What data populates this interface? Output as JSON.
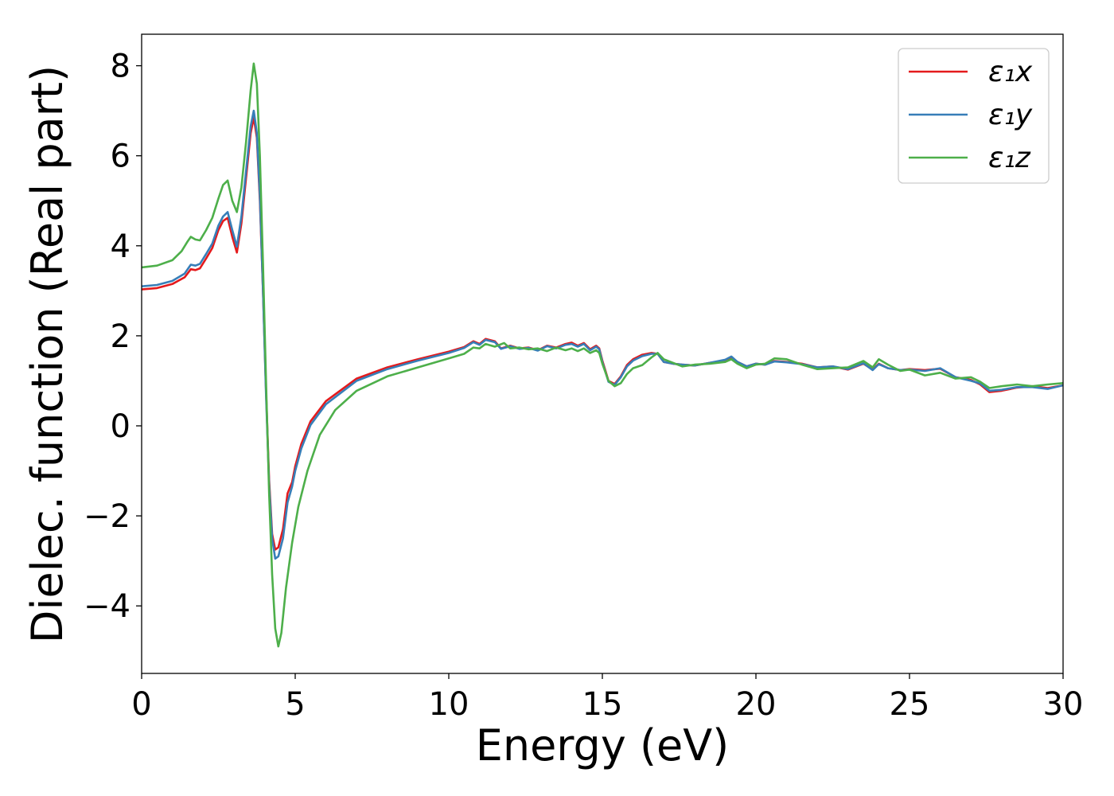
{
  "chart_data": {
    "type": "line",
    "xlabel": "Energy (eV)",
    "ylabel": "Dielec. function (Real part)",
    "xlim": [
      0,
      30
    ],
    "ylim": [
      -5.5,
      8.7
    ],
    "xticks": [
      0,
      5,
      10,
      15,
      20,
      25,
      30
    ],
    "xtick_labels": [
      "0",
      "5",
      "10",
      "15",
      "20",
      "25",
      "30"
    ],
    "yticks": [
      -4,
      -2,
      0,
      2,
      4,
      6,
      8
    ],
    "ytick_labels": [
      "−4",
      "−2",
      "0",
      "2",
      "4",
      "6",
      "8"
    ],
    "grid": false,
    "legend_position": "top-right",
    "series": [
      {
        "name": "ε₁x",
        "color": "#e41a1c",
        "points": [
          [
            0,
            3.03
          ],
          [
            0.5,
            3.06
          ],
          [
            1.0,
            3.15
          ],
          [
            1.4,
            3.3
          ],
          [
            1.6,
            3.48
          ],
          [
            1.75,
            3.46
          ],
          [
            1.9,
            3.5
          ],
          [
            2.1,
            3.72
          ],
          [
            2.3,
            3.95
          ],
          [
            2.5,
            4.35
          ],
          [
            2.65,
            4.55
          ],
          [
            2.8,
            4.62
          ],
          [
            2.95,
            4.2
          ],
          [
            3.1,
            3.85
          ],
          [
            3.25,
            4.5
          ],
          [
            3.4,
            5.5
          ],
          [
            3.55,
            6.5
          ],
          [
            3.65,
            6.85
          ],
          [
            3.75,
            6.4
          ],
          [
            3.85,
            5.0
          ],
          [
            3.95,
            3.0
          ],
          [
            4.05,
            0.8
          ],
          [
            4.15,
            -1.2
          ],
          [
            4.25,
            -2.4
          ],
          [
            4.35,
            -2.75
          ],
          [
            4.45,
            -2.7
          ],
          [
            4.6,
            -2.3
          ],
          [
            4.75,
            -1.5
          ],
          [
            4.9,
            -1.25
          ],
          [
            5.0,
            -0.9
          ],
          [
            5.2,
            -0.4
          ],
          [
            5.5,
            0.1
          ],
          [
            6.0,
            0.55
          ],
          [
            7.0,
            1.05
          ],
          [
            8.0,
            1.3
          ],
          [
            9.0,
            1.48
          ],
          [
            10.0,
            1.65
          ],
          [
            10.5,
            1.75
          ],
          [
            10.8,
            1.88
          ],
          [
            11.0,
            1.82
          ],
          [
            11.2,
            1.93
          ],
          [
            11.5,
            1.88
          ],
          [
            11.7,
            1.72
          ],
          [
            12.0,
            1.78
          ],
          [
            12.3,
            1.72
          ],
          [
            12.6,
            1.74
          ],
          [
            12.9,
            1.68
          ],
          [
            13.2,
            1.78
          ],
          [
            13.5,
            1.74
          ],
          [
            13.8,
            1.82
          ],
          [
            14.0,
            1.85
          ],
          [
            14.2,
            1.78
          ],
          [
            14.4,
            1.84
          ],
          [
            14.6,
            1.7
          ],
          [
            14.8,
            1.78
          ],
          [
            14.9,
            1.72
          ],
          [
            15.0,
            1.45
          ],
          [
            15.2,
            1.0
          ],
          [
            15.4,
            0.93
          ],
          [
            15.6,
            1.1
          ],
          [
            15.8,
            1.35
          ],
          [
            16.0,
            1.48
          ],
          [
            16.3,
            1.58
          ],
          [
            16.6,
            1.62
          ],
          [
            16.8,
            1.6
          ],
          [
            17.0,
            1.42
          ],
          [
            17.3,
            1.38
          ],
          [
            17.6,
            1.36
          ],
          [
            18.0,
            1.34
          ],
          [
            18.5,
            1.4
          ],
          [
            19.0,
            1.45
          ],
          [
            19.2,
            1.52
          ],
          [
            19.4,
            1.42
          ],
          [
            19.7,
            1.32
          ],
          [
            20.0,
            1.38
          ],
          [
            20.3,
            1.36
          ],
          [
            20.6,
            1.44
          ],
          [
            21.0,
            1.42
          ],
          [
            21.5,
            1.38
          ],
          [
            22.0,
            1.3
          ],
          [
            22.5,
            1.32
          ],
          [
            23.0,
            1.25
          ],
          [
            23.5,
            1.38
          ],
          [
            23.8,
            1.25
          ],
          [
            24.0,
            1.38
          ],
          [
            24.3,
            1.28
          ],
          [
            24.7,
            1.24
          ],
          [
            25.0,
            1.26
          ],
          [
            25.5,
            1.24
          ],
          [
            26.0,
            1.27
          ],
          [
            26.5,
            1.08
          ],
          [
            27.0,
            1.02
          ],
          [
            27.3,
            0.92
          ],
          [
            27.6,
            0.75
          ],
          [
            28.0,
            0.78
          ],
          [
            28.5,
            0.85
          ],
          [
            29.0,
            0.88
          ],
          [
            29.5,
            0.84
          ],
          [
            30.0,
            0.9
          ]
        ]
      },
      {
        "name": "ε₁y",
        "color": "#377eb8",
        "points": [
          [
            0,
            3.1
          ],
          [
            0.5,
            3.13
          ],
          [
            1.0,
            3.22
          ],
          [
            1.4,
            3.38
          ],
          [
            1.6,
            3.58
          ],
          [
            1.75,
            3.56
          ],
          [
            1.9,
            3.6
          ],
          [
            2.1,
            3.82
          ],
          [
            2.3,
            4.05
          ],
          [
            2.5,
            4.45
          ],
          [
            2.65,
            4.65
          ],
          [
            2.8,
            4.75
          ],
          [
            2.95,
            4.35
          ],
          [
            3.1,
            3.98
          ],
          [
            3.25,
            4.65
          ],
          [
            3.4,
            5.65
          ],
          [
            3.55,
            6.65
          ],
          [
            3.65,
            7.0
          ],
          [
            3.75,
            6.5
          ],
          [
            3.85,
            5.1
          ],
          [
            3.95,
            3.0
          ],
          [
            4.05,
            0.7
          ],
          [
            4.15,
            -1.3
          ],
          [
            4.25,
            -2.5
          ],
          [
            4.35,
            -2.95
          ],
          [
            4.45,
            -2.9
          ],
          [
            4.6,
            -2.5
          ],
          [
            4.75,
            -1.7
          ],
          [
            4.9,
            -1.35
          ],
          [
            5.0,
            -1.0
          ],
          [
            5.2,
            -0.5
          ],
          [
            5.5,
            0.02
          ],
          [
            6.0,
            0.48
          ],
          [
            7.0,
            1.0
          ],
          [
            8.0,
            1.26
          ],
          [
            9.0,
            1.45
          ],
          [
            10.0,
            1.62
          ],
          [
            10.5,
            1.73
          ],
          [
            10.8,
            1.86
          ],
          [
            11.0,
            1.8
          ],
          [
            11.2,
            1.91
          ],
          [
            11.5,
            1.86
          ],
          [
            11.7,
            1.71
          ],
          [
            12.0,
            1.77
          ],
          [
            12.3,
            1.71
          ],
          [
            12.6,
            1.73
          ],
          [
            12.9,
            1.67
          ],
          [
            13.2,
            1.77
          ],
          [
            13.5,
            1.72
          ],
          [
            13.8,
            1.8
          ],
          [
            14.0,
            1.82
          ],
          [
            14.2,
            1.76
          ],
          [
            14.4,
            1.82
          ],
          [
            14.6,
            1.68
          ],
          [
            14.8,
            1.76
          ],
          [
            14.9,
            1.7
          ],
          [
            15.0,
            1.42
          ],
          [
            15.2,
            0.98
          ],
          [
            15.4,
            0.91
          ],
          [
            15.6,
            1.08
          ],
          [
            15.8,
            1.32
          ],
          [
            16.0,
            1.45
          ],
          [
            16.3,
            1.55
          ],
          [
            16.6,
            1.6
          ],
          [
            16.8,
            1.6
          ],
          [
            17.0,
            1.42
          ],
          [
            17.3,
            1.38
          ],
          [
            17.6,
            1.36
          ],
          [
            18.0,
            1.34
          ],
          [
            18.5,
            1.4
          ],
          [
            19.0,
            1.47
          ],
          [
            19.2,
            1.54
          ],
          [
            19.4,
            1.42
          ],
          [
            19.7,
            1.32
          ],
          [
            20.0,
            1.38
          ],
          [
            20.3,
            1.36
          ],
          [
            20.6,
            1.43
          ],
          [
            21.0,
            1.41
          ],
          [
            21.5,
            1.37
          ],
          [
            22.0,
            1.3
          ],
          [
            22.5,
            1.32
          ],
          [
            23.0,
            1.26
          ],
          [
            23.5,
            1.39
          ],
          [
            23.8,
            1.24
          ],
          [
            24.0,
            1.37
          ],
          [
            24.3,
            1.28
          ],
          [
            24.7,
            1.24
          ],
          [
            25.0,
            1.25
          ],
          [
            25.5,
            1.22
          ],
          [
            26.0,
            1.28
          ],
          [
            26.5,
            1.08
          ],
          [
            27.0,
            1.0
          ],
          [
            27.3,
            0.94
          ],
          [
            27.6,
            0.78
          ],
          [
            28.0,
            0.8
          ],
          [
            28.5,
            0.86
          ],
          [
            29.0,
            0.86
          ],
          [
            29.5,
            0.82
          ],
          [
            30.0,
            0.9
          ]
        ]
      },
      {
        "name": "ε₁z",
        "color": "#4daf4a",
        "points": [
          [
            0,
            3.52
          ],
          [
            0.5,
            3.56
          ],
          [
            1.0,
            3.68
          ],
          [
            1.3,
            3.88
          ],
          [
            1.5,
            4.1
          ],
          [
            1.6,
            4.2
          ],
          [
            1.75,
            4.14
          ],
          [
            1.9,
            4.12
          ],
          [
            2.1,
            4.35
          ],
          [
            2.3,
            4.62
          ],
          [
            2.5,
            5.05
          ],
          [
            2.65,
            5.35
          ],
          [
            2.8,
            5.45
          ],
          [
            2.95,
            5.0
          ],
          [
            3.1,
            4.75
          ],
          [
            3.25,
            5.3
          ],
          [
            3.4,
            6.3
          ],
          [
            3.55,
            7.45
          ],
          [
            3.65,
            8.05
          ],
          [
            3.75,
            7.6
          ],
          [
            3.85,
            6.0
          ],
          [
            3.95,
            3.6
          ],
          [
            4.05,
            1.0
          ],
          [
            4.15,
            -1.5
          ],
          [
            4.25,
            -3.3
          ],
          [
            4.35,
            -4.5
          ],
          [
            4.45,
            -4.9
          ],
          [
            4.55,
            -4.6
          ],
          [
            4.7,
            -3.6
          ],
          [
            4.9,
            -2.6
          ],
          [
            5.1,
            -1.8
          ],
          [
            5.4,
            -1.0
          ],
          [
            5.8,
            -0.2
          ],
          [
            6.3,
            0.35
          ],
          [
            7.0,
            0.78
          ],
          [
            8.0,
            1.1
          ],
          [
            9.0,
            1.3
          ],
          [
            10.0,
            1.5
          ],
          [
            10.5,
            1.6
          ],
          [
            10.8,
            1.74
          ],
          [
            11.0,
            1.72
          ],
          [
            11.2,
            1.82
          ],
          [
            11.5,
            1.76
          ],
          [
            11.8,
            1.84
          ],
          [
            12.0,
            1.72
          ],
          [
            12.3,
            1.74
          ],
          [
            12.6,
            1.7
          ],
          [
            12.9,
            1.72
          ],
          [
            13.2,
            1.66
          ],
          [
            13.5,
            1.74
          ],
          [
            13.8,
            1.68
          ],
          [
            14.0,
            1.72
          ],
          [
            14.2,
            1.66
          ],
          [
            14.4,
            1.72
          ],
          [
            14.6,
            1.62
          ],
          [
            14.8,
            1.68
          ],
          [
            14.9,
            1.62
          ],
          [
            15.0,
            1.38
          ],
          [
            15.2,
            1.0
          ],
          [
            15.4,
            0.88
          ],
          [
            15.6,
            0.95
          ],
          [
            15.8,
            1.15
          ],
          [
            16.0,
            1.28
          ],
          [
            16.3,
            1.35
          ],
          [
            16.6,
            1.52
          ],
          [
            16.8,
            1.62
          ],
          [
            17.0,
            1.48
          ],
          [
            17.3,
            1.4
          ],
          [
            17.6,
            1.32
          ],
          [
            18.0,
            1.36
          ],
          [
            18.5,
            1.38
          ],
          [
            19.0,
            1.42
          ],
          [
            19.2,
            1.48
          ],
          [
            19.4,
            1.38
          ],
          [
            19.7,
            1.28
          ],
          [
            20.0,
            1.36
          ],
          [
            20.3,
            1.38
          ],
          [
            20.6,
            1.5
          ],
          [
            21.0,
            1.48
          ],
          [
            21.5,
            1.36
          ],
          [
            22.0,
            1.26
          ],
          [
            22.5,
            1.28
          ],
          [
            23.0,
            1.3
          ],
          [
            23.5,
            1.44
          ],
          [
            23.8,
            1.3
          ],
          [
            24.0,
            1.48
          ],
          [
            24.3,
            1.36
          ],
          [
            24.7,
            1.22
          ],
          [
            25.0,
            1.25
          ],
          [
            25.5,
            1.12
          ],
          [
            26.0,
            1.18
          ],
          [
            26.5,
            1.05
          ],
          [
            27.0,
            1.08
          ],
          [
            27.3,
            0.98
          ],
          [
            27.6,
            0.84
          ],
          [
            28.0,
            0.88
          ],
          [
            28.5,
            0.92
          ],
          [
            29.0,
            0.88
          ],
          [
            29.5,
            0.92
          ],
          [
            30.0,
            0.95
          ]
        ]
      }
    ]
  }
}
